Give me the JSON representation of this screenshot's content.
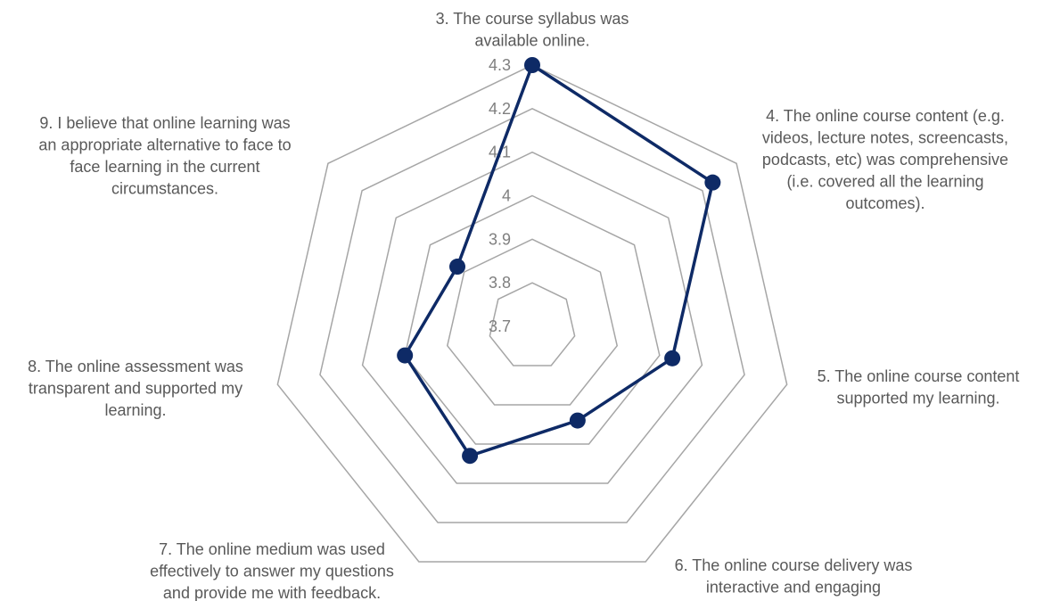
{
  "chart_data": {
    "type": "radar",
    "categories": [
      [
        "3.  The course syllabus was",
        "available online."
      ],
      [
        "4.  The online course content (e.g.",
        "videos, lecture notes, screencasts,",
        "podcasts, etc) was comprehensive",
        "(i.e. covered all the learning",
        "outcomes)."
      ],
      [
        "5.  The online course content",
        "supported my learning."
      ],
      [
        "6.  The online course delivery was",
        "interactive and engaging"
      ],
      [
        "7.  The online medium was used",
        "effectively to answer my questions",
        "and provide me with feedback."
      ],
      [
        "8.  The online assessment was",
        "transparent and supported my",
        "learning."
      ],
      [
        "9.  I believe that online learning was",
        "an appropriate alternative to face to",
        "face learning in the current",
        "circumstances."
      ]
    ],
    "values": [
      4.3,
      4.23,
      4.03,
      3.94,
      4.03,
      4.0,
      3.92
    ],
    "color": "#0e2a66",
    "ylim": [
      3.7,
      4.3
    ],
    "yticks": [
      3.7,
      3.8,
      3.9,
      4,
      4.1,
      4.2,
      4.3
    ],
    "grid": true
  }
}
